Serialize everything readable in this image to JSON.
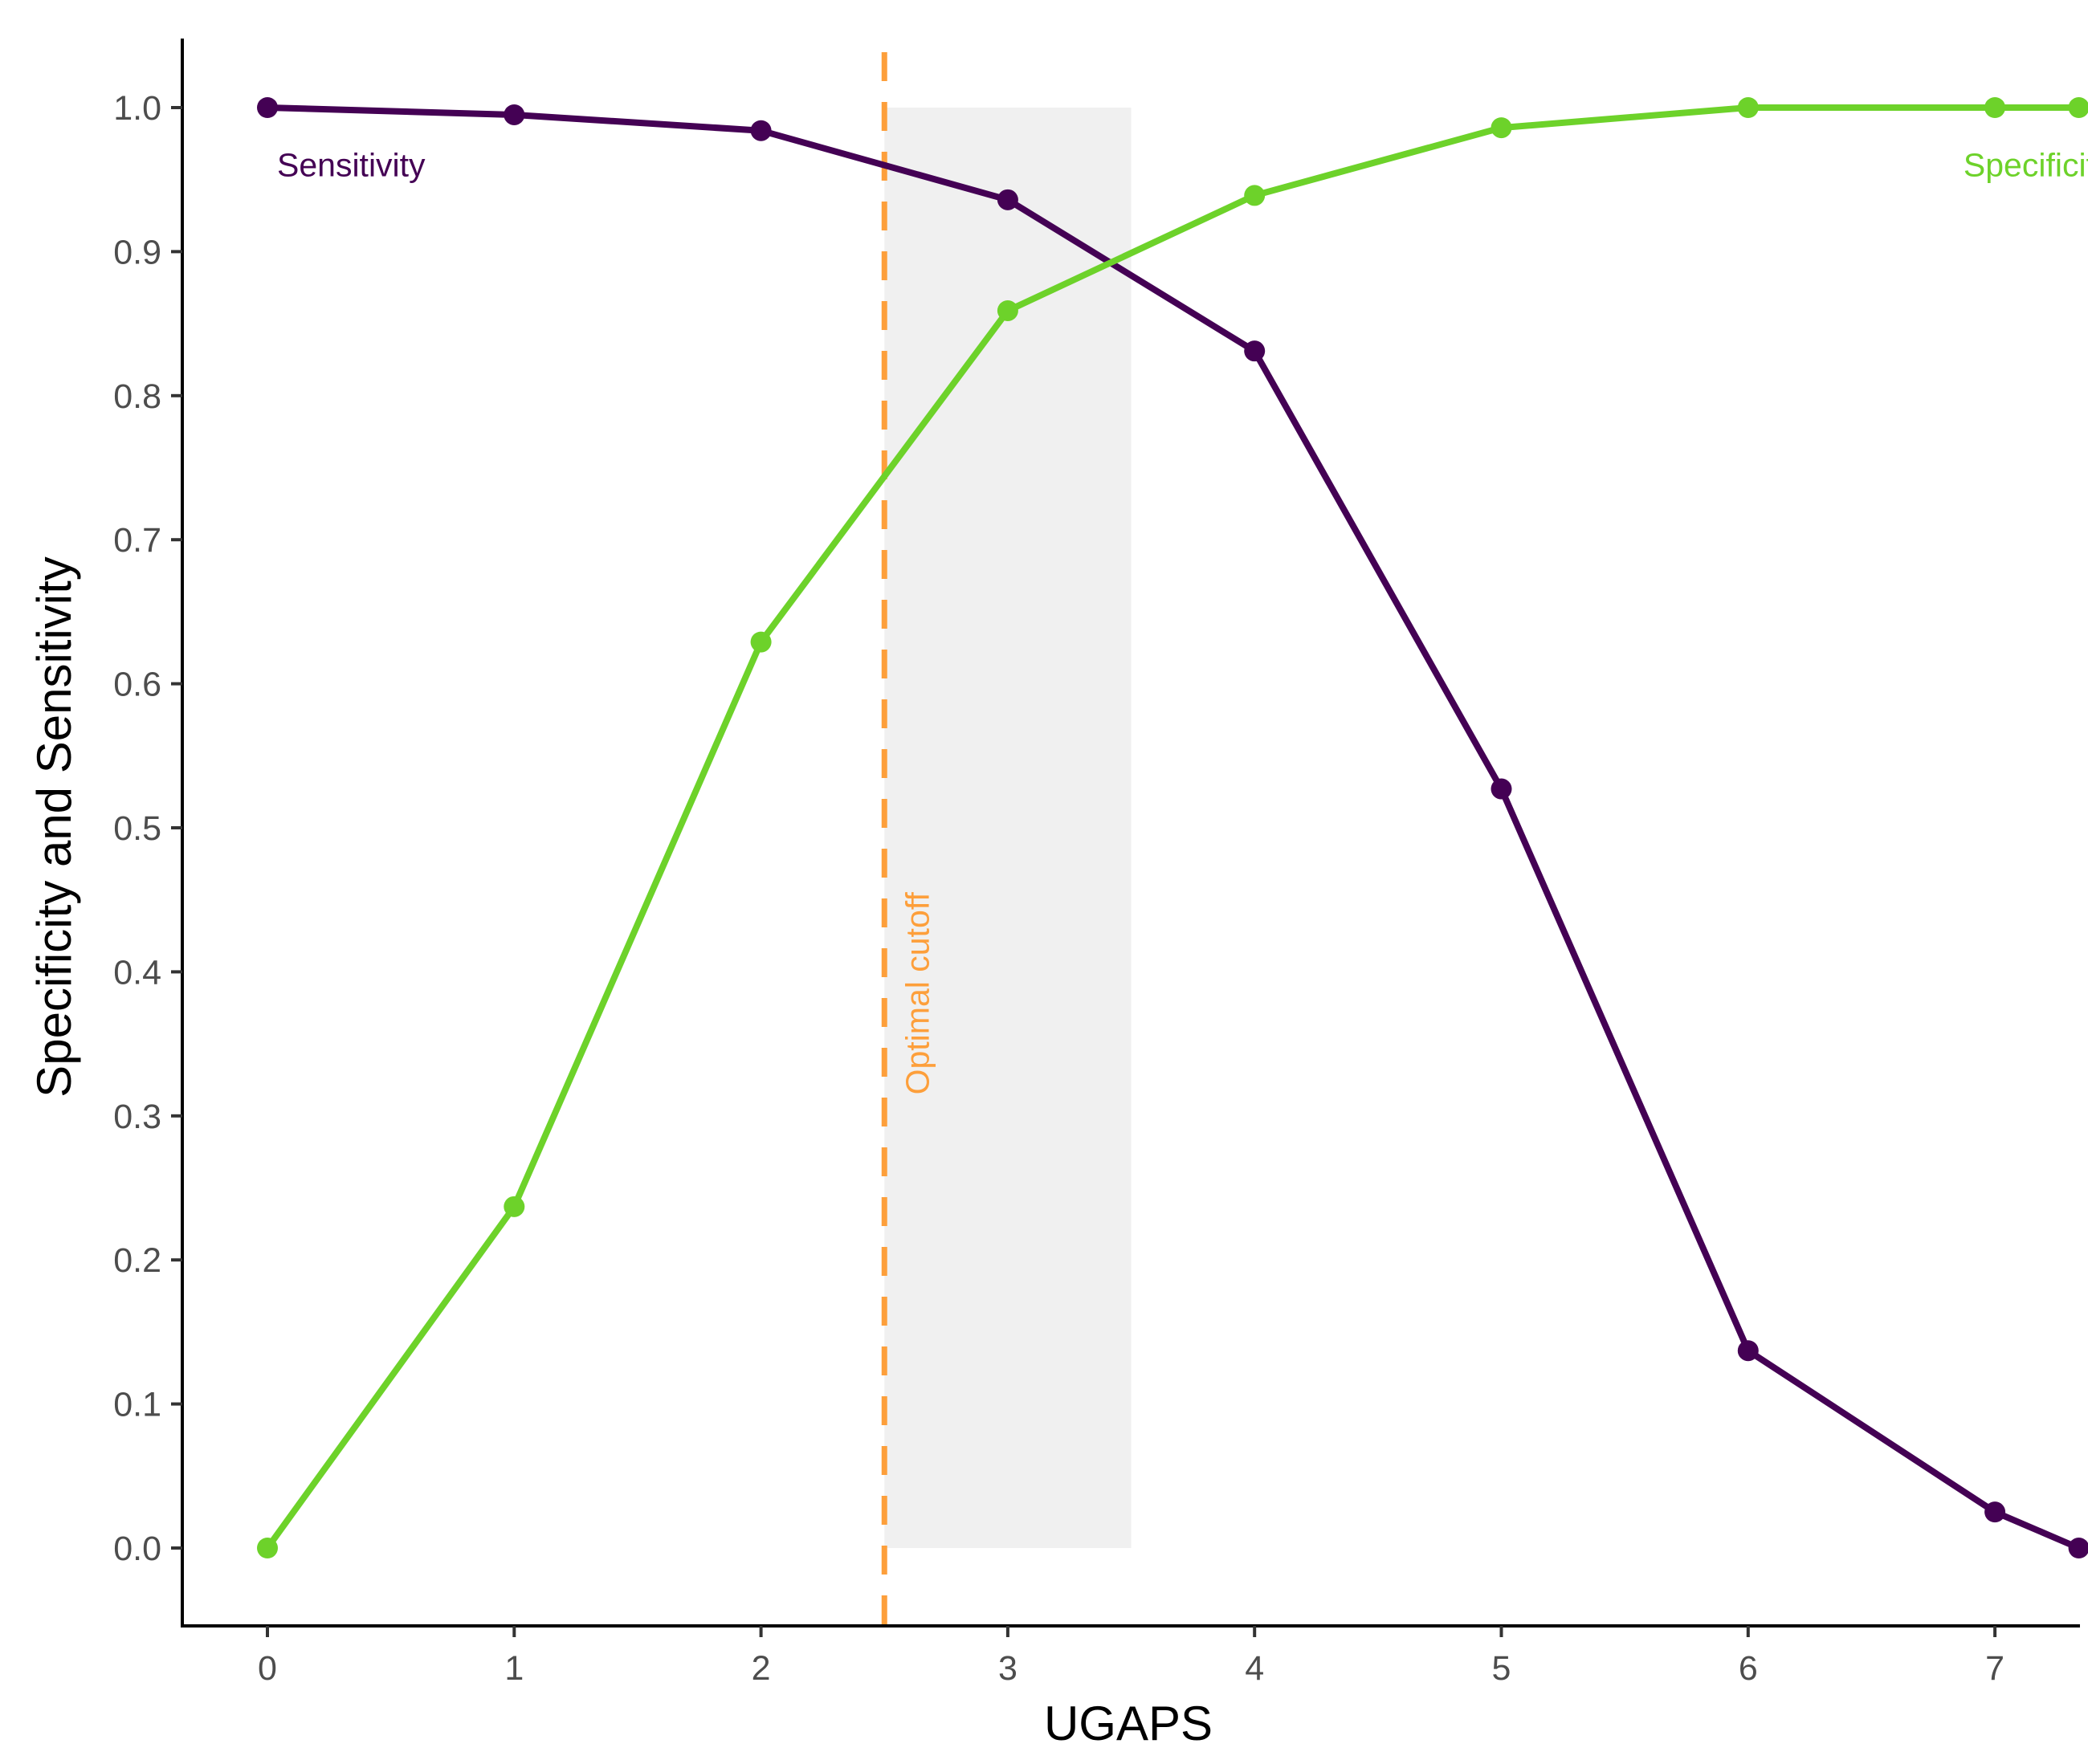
{
  "chart_data": {
    "type": "line",
    "xlabel": "UGAPS",
    "ylabel": "Specificity and Sensitivity",
    "x": [
      0,
      1,
      2,
      3,
      4,
      5,
      6,
      7,
      7.34
    ],
    "xlim": [
      -0.35,
      7.34
    ],
    "ylim": [
      -0.05,
      1.05
    ],
    "x_ticks": [
      0,
      1,
      2,
      3,
      4,
      5,
      6,
      7
    ],
    "y_ticks": [
      0.0,
      0.1,
      0.2,
      0.3,
      0.4,
      0.5,
      0.6,
      0.7,
      0.8,
      0.9,
      1.0
    ],
    "y_tick_labels": [
      "0.0",
      "0.1",
      "0.2",
      "0.3",
      "0.4",
      "0.5",
      "0.6",
      "0.7",
      "0.8",
      "0.9",
      "1.0"
    ],
    "grid": false,
    "series": [
      {
        "name": "Sensitivity",
        "color": "#440154",
        "values": [
          1.0,
          0.995,
          0.984,
          0.936,
          0.831,
          0.527,
          0.137,
          0.025,
          0.0
        ]
      },
      {
        "name": "Specificity",
        "color": "#6dd22a",
        "values": [
          0.0,
          0.237,
          0.629,
          0.859,
          0.939,
          0.986,
          1.0,
          1.0,
          1.0
        ]
      }
    ],
    "series_label_positions": [
      {
        "x": 0.05,
        "y": 0.955
      },
      {
        "x": 7.15,
        "y": 0.955
      }
    ],
    "cutoff": {
      "label": "Optimal cutoff",
      "x": 2.5,
      "color": "#fd9f3b",
      "label_y": 0.31
    },
    "shaded_region": {
      "x_range": [
        2.5,
        3.5
      ],
      "y_range": [
        0.0,
        1.0
      ],
      "color": "#f0f0f0"
    }
  }
}
